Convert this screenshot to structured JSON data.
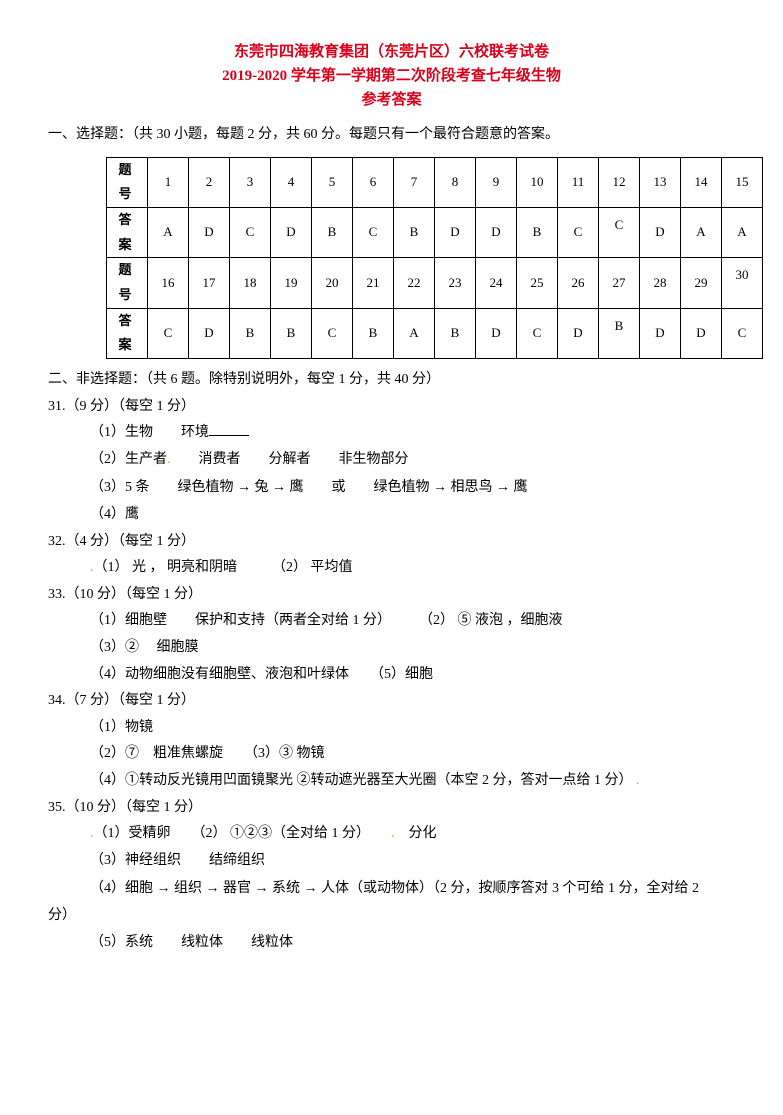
{
  "title": {
    "line1": "东莞市四海教育集团（东莞片区）六校联考试卷",
    "line2": "2019-2020 学年第一学期第二次阶段考查七年级生物",
    "line3": "参考答案"
  },
  "section1_intro": "一、选择题：（共 30 小题，每题 2 分，共 60 分。每题只有一个最符合题意的答案。",
  "table": {
    "row_label_q": "题 号",
    "row_label_a": "答 案",
    "nums1": [
      "1",
      "2",
      "3",
      "4",
      "5",
      "6",
      "7",
      "8",
      "9",
      "10",
      "11",
      "12",
      "13",
      "14",
      "15"
    ],
    "ans1": [
      "A",
      "D",
      "C",
      "D",
      "B",
      "C",
      "B",
      "D",
      "D",
      "B",
      "C",
      "C",
      "D",
      "A",
      "A"
    ],
    "nums2": [
      "16",
      "17",
      "18",
      "19",
      "20",
      "21",
      "22",
      "23",
      "24",
      "25",
      "26",
      "27",
      "28",
      "29",
      "30"
    ],
    "ans2": [
      "C",
      "D",
      "B",
      "B",
      "C",
      "B",
      "A",
      "B",
      "D",
      "C",
      "D",
      "B",
      "D",
      "D",
      "C"
    ]
  },
  "section2_intro": "二、非选择题：（共 6 题。除特别说明外，每空 1 分，共 40 分）",
  "q31": {
    "head": "31.（9 分）（每空 1 分）",
    "p1": "（1）生物　　环境",
    "p2_pre": "（2）生产者",
    "p2_rest": "　　消费者　　分解者　　非生物部分",
    "p3_a": "（3）5 条　　绿色植物",
    "p3_b": "兔",
    "p3_c": "鹰　　或　　绿色植物",
    "p3_d": "相思鸟",
    "p3_e": "鹰",
    "p4": "（4）鹰"
  },
  "q32": {
    "head": "32.（4 分）（每空 1 分）",
    "p1": "（1） 光 ， 明亮和阴暗　　　（2） 平均值"
  },
  "q33": {
    "head": "33.（10 分）（每空 1 分）",
    "p1": "（1）细胞壁　　保护和支持（两者全对给 1 分）　　　（2） ⑤ 液泡 ，细胞液",
    "p2": "（3）② 　细胞膜",
    "p3": "（4）动物细胞没有细胞壁、液泡和叶绿体　　（5）细胞"
  },
  "q34": {
    "head": "34.（7 分）（每空 1 分）",
    "p1": "（1）物镜",
    "p2": "（2）⑦　粗准焦螺旋　　（3）③ 物镜",
    "p3": "（4）①转动反光镜用凹面镜聚光 ②转动遮光器至大光圈（本空 2 分，答对一点给 1 分）"
  },
  "q35": {
    "head": "35.（10 分）（每空 1 分）",
    "p1_a": "（1）受精卵　　（2） ①②③（全对给 1 分）　　",
    "p1_b": "　分化",
    "p2": "（3）神经组织　　结缔组织",
    "p3_a": "（4）细胞",
    "p3_b": "组织",
    "p3_c": "器官",
    "p3_d": "系统",
    "p3_e": "人体（或动物体）（2 分，按顺序答对 3 个可给 1 分，全对给 2",
    "p3_end": "分）",
    "p4": "（5）系统　　线粒体　　线粒体"
  },
  "arrow_glyph": "→"
}
